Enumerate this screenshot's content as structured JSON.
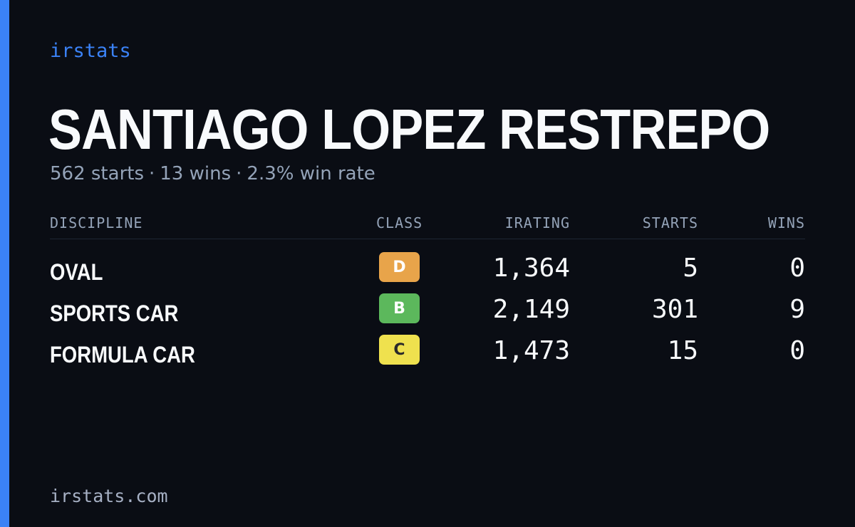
{
  "brand": "irstats",
  "driver": {
    "name": "SANTIAGO LOPEZ RESTREPO",
    "starts_text": "562 starts",
    "wins_text": "13 wins",
    "win_rate_text": "2.3% win rate",
    "separator": "·"
  },
  "table": {
    "headers": {
      "discipline": "DISCIPLINE",
      "class": "CLASS",
      "irating": "IRATING",
      "starts": "STARTS",
      "wins": "WINS"
    },
    "rows": [
      {
        "discipline": "OVAL",
        "class": "D",
        "class_color": "#e8a44a",
        "class_text_color": "#ffffff",
        "irating": "1,364",
        "starts": "5",
        "wins": "0"
      },
      {
        "discipline": "SPORTS CAR",
        "class": "B",
        "class_color": "#5cb85c",
        "class_text_color": "#ffffff",
        "irating": "2,149",
        "starts": "301",
        "wins": "9"
      },
      {
        "discipline": "FORMULA CAR",
        "class": "C",
        "class_color": "#efe14e",
        "class_text_color": "#2a2a2a",
        "irating": "1,473",
        "starts": "15",
        "wins": "0"
      }
    ]
  },
  "footer": "irstats.com",
  "colors": {
    "background": "#0a0d14",
    "accent": "#3b82f6",
    "text_primary": "#f8fafc",
    "text_muted": "#94a3b8"
  }
}
